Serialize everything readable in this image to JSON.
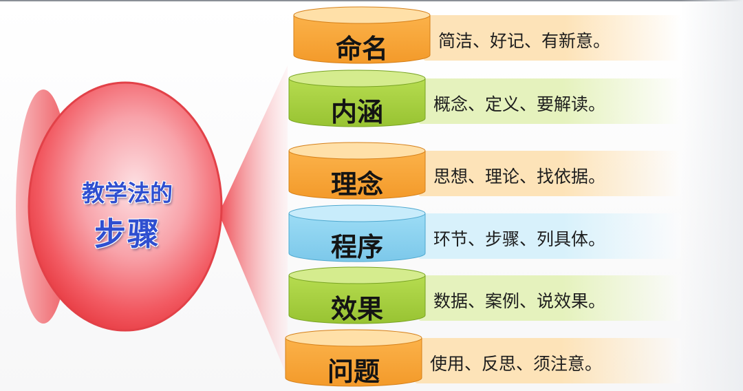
{
  "title": {
    "line1": "教学法的",
    "line2": "步骤"
  },
  "colors": {
    "orange": "#f7a43a",
    "green": "#a8cf3c",
    "blue": "#8ad2ef",
    "ellipse": "#f25056",
    "title_text": "#2f4fd0"
  },
  "steps": [
    {
      "label": "命名",
      "desc": "简洁、好记、有新意。",
      "color": "orange"
    },
    {
      "label": "内涵",
      "desc": "概念、定义、要解读。",
      "color": "green"
    },
    {
      "label": "理念",
      "desc": "思想、理论、找依据。",
      "color": "orange"
    },
    {
      "label": "程序",
      "desc": "环节、步骤、列具体。",
      "color": "blue"
    },
    {
      "label": "效果",
      "desc": "数据、案例、说效果。",
      "color": "green"
    },
    {
      "label": "问题",
      "desc": "使用、反思、须注意。",
      "color": "orange"
    }
  ]
}
